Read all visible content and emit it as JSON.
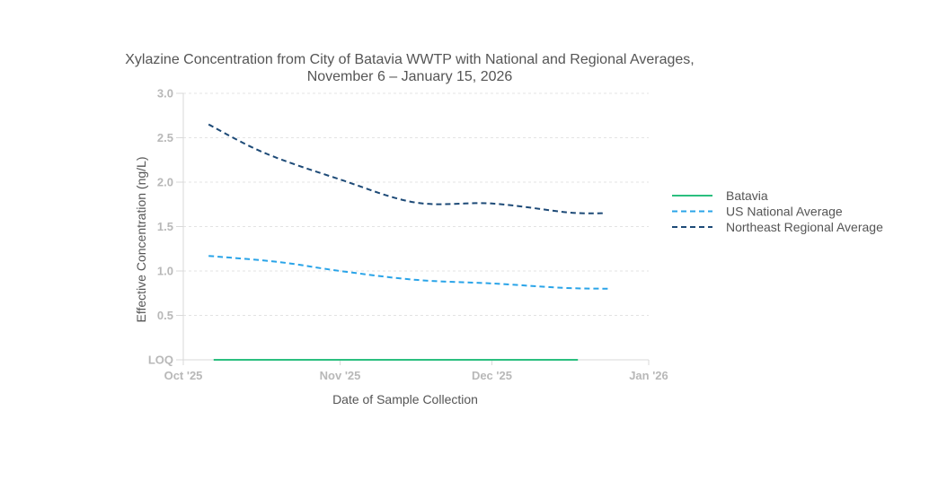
{
  "chart_data": {
    "type": "line",
    "title": "Xylazine Concentration from City of Batavia WWTP with National and Regional Averages,",
    "subtitle": "November 6 – January 15, 2026",
    "xlabel": "Date of Sample Collection",
    "ylabel": "Effective Concentration (ng/L)",
    "x_ticks": [
      {
        "date": "2025-10-01",
        "label": "Oct '25"
      },
      {
        "date": "2025-11-01",
        "label": "Nov '25"
      },
      {
        "date": "2025-12-01",
        "label": "Dec '25"
      },
      {
        "date": "2026-01-01",
        "label": "Jan '26"
      }
    ],
    "xlim": [
      "2025-10-01",
      "2026-01-01"
    ],
    "y_ticks": [
      {
        "value": 0,
        "label": "LOQ"
      },
      {
        "value": 0.5,
        "label": "0.5"
      },
      {
        "value": 1.0,
        "label": "1.0"
      },
      {
        "value": 1.5,
        "label": "1.5"
      },
      {
        "value": 2.0,
        "label": "2.0"
      },
      {
        "value": 2.5,
        "label": "2.5"
      },
      {
        "value": 3.0,
        "label": "3.0"
      }
    ],
    "ylim": [
      0,
      3.0
    ],
    "grid": true,
    "legend_position": "right",
    "series": [
      {
        "name": "Batavia",
        "color": "#2bbf7f",
        "dash": "solid",
        "points": [
          {
            "x": "2025-10-07",
            "y": 0
          },
          {
            "x": "2025-12-18",
            "y": 0
          }
        ]
      },
      {
        "name": "US National Average",
        "color": "#2aa4e8",
        "dash": "dashed",
        "points": [
          {
            "x": "2025-10-06",
            "y": 1.17
          },
          {
            "x": "2025-10-20",
            "y": 1.1
          },
          {
            "x": "2025-11-01",
            "y": 1.0
          },
          {
            "x": "2025-11-16",
            "y": 0.9
          },
          {
            "x": "2025-12-01",
            "y": 0.86
          },
          {
            "x": "2025-12-15",
            "y": 0.81
          },
          {
            "x": "2025-12-24",
            "y": 0.8
          }
        ]
      },
      {
        "name": "Northeast Regional Average",
        "color": "#1d4a77",
        "dash": "dashed",
        "points": [
          {
            "x": "2025-10-06",
            "y": 2.65
          },
          {
            "x": "2025-10-17",
            "y": 2.33
          },
          {
            "x": "2025-11-01",
            "y": 2.03
          },
          {
            "x": "2025-11-16",
            "y": 1.77
          },
          {
            "x": "2025-12-01",
            "y": 1.76
          },
          {
            "x": "2025-12-16",
            "y": 1.66
          },
          {
            "x": "2025-12-23",
            "y": 1.65
          }
        ]
      }
    ]
  }
}
